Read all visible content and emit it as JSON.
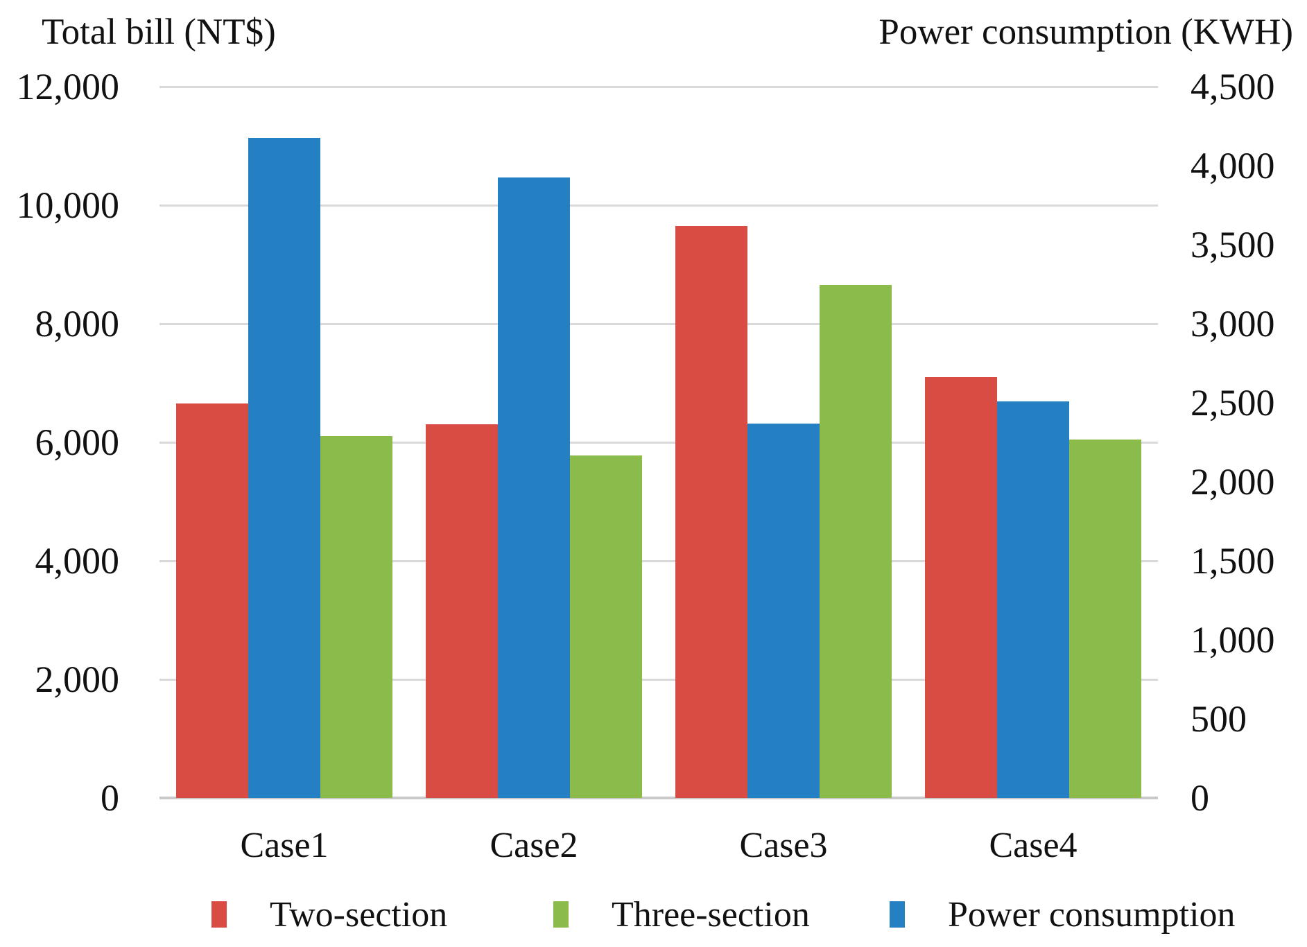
{
  "chart_data": {
    "type": "bar",
    "categories": [
      "Case1",
      "Case2",
      "Case3",
      "Case4"
    ],
    "series": [
      {
        "name": "Two-section",
        "axis": "left",
        "color": "#d84c44",
        "values": [
          6650,
          6300,
          9650,
          7100
        ]
      },
      {
        "name": "Three-section",
        "axis": "left",
        "color": "#8bbc4b",
        "values": [
          6100,
          5775,
          8650,
          6050
        ]
      },
      {
        "name": "Power consumption",
        "axis": "right",
        "color": "#2480c2",
        "values": [
          4175,
          3925,
          2370,
          2510
        ]
      }
    ],
    "bar_order": [
      0,
      2,
      1
    ],
    "axes": {
      "left": {
        "title": "Total bill (NT$)",
        "min": 0,
        "max": 12000,
        "tick_step": 2000,
        "tick_labels": [
          "12,000",
          "10,000",
          "8,000",
          "6,000",
          "4,000",
          "2,000",
          "0"
        ]
      },
      "right": {
        "title": "Power consumption (KWH)",
        "min": 0,
        "max": 4500,
        "tick_step": 500,
        "tick_labels": [
          "4,500",
          "4,000",
          "3,500",
          "3,000",
          "2,500",
          "2,000",
          "1,500",
          "1,000",
          "500",
          "0"
        ]
      }
    },
    "grid": {
      "color": "#d9d9d9",
      "baseline_color": "#c9c9c9",
      "show": true
    },
    "legend_position": "bottom"
  }
}
